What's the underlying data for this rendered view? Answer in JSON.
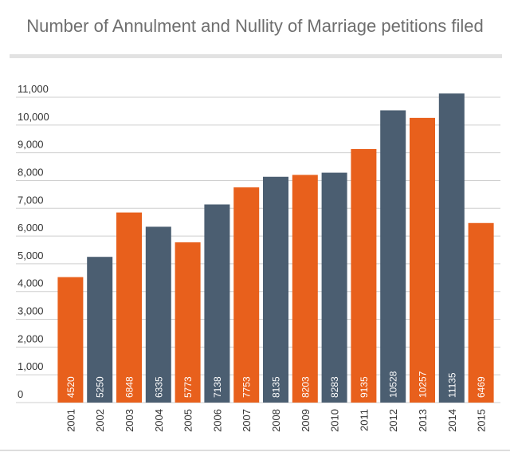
{
  "title": "Number of Annulment and Nullity of Marriage petitions filed",
  "colors": {
    "orange": "#e8601c",
    "slate": "#4b5e71",
    "grid": "#cfcfcf",
    "text": "#333333"
  },
  "chart_data": {
    "type": "bar",
    "title": "Number of Annulment and Nullity of Marriage petitions filed",
    "xlabel": "",
    "ylabel": "",
    "ylim": [
      0,
      11000
    ],
    "yticks": [
      0,
      1000,
      2000,
      3000,
      4000,
      5000,
      6000,
      7000,
      8000,
      9000,
      10000,
      11000
    ],
    "ytick_labels": [
      "0",
      "1,000",
      "2,000",
      "3,000",
      "4,000",
      "5,000",
      "6,000",
      "7,000",
      "8,000",
      "9,000",
      "10,000",
      "11,000"
    ],
    "grid": true,
    "legend": "none",
    "categories": [
      "2001",
      "2002",
      "2003",
      "2004",
      "2005",
      "2006",
      "2007",
      "2008",
      "2009",
      "2010",
      "2011",
      "2012",
      "2013",
      "2014",
      "2015"
    ],
    "values": [
      4520,
      5250,
      6848,
      6335,
      5773,
      7138,
      7753,
      8135,
      8203,
      8283,
      9135,
      10528,
      10257,
      11135,
      6469
    ],
    "bar_colors": [
      "orange",
      "slate",
      "orange",
      "slate",
      "orange",
      "slate",
      "orange",
      "slate",
      "orange",
      "slate",
      "orange",
      "slate",
      "orange",
      "slate",
      "orange"
    ]
  }
}
